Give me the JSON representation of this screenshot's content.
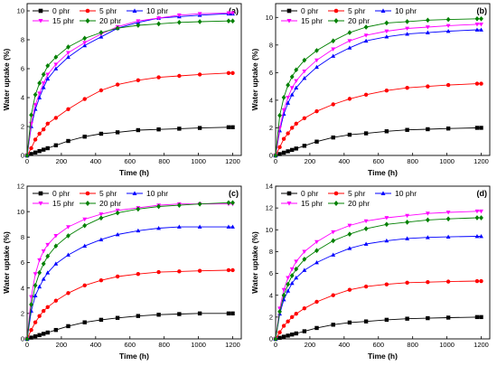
{
  "chart_data": [
    {
      "type": "line",
      "panel_label": "(a)",
      "xlabel": "Time (h)",
      "ylabel": "Water uptake (%)",
      "xlim": [
        0,
        1250
      ],
      "ylim": [
        0,
        10.5
      ],
      "xticks": [
        0,
        200,
        400,
        600,
        800,
        1000,
        1200
      ],
      "yticks": [
        0,
        2,
        4,
        6,
        8,
        10
      ],
      "legend_position": "top-left",
      "series": [
        {
          "name": "0 phr",
          "color": "#000000",
          "marker": "square",
          "x": [
            0,
            24,
            48,
            72,
            96,
            120,
            168,
            240,
            336,
            432,
            528,
            648,
            768,
            888,
            1008,
            1176,
            1200
          ],
          "y": [
            0,
            0.1,
            0.2,
            0.3,
            0.4,
            0.5,
            0.7,
            1.0,
            1.3,
            1.5,
            1.6,
            1.75,
            1.8,
            1.85,
            1.9,
            1.95,
            1.95
          ]
        },
        {
          "name": "5 phr",
          "color": "#ff0000",
          "marker": "circle",
          "x": [
            0,
            24,
            48,
            72,
            96,
            120,
            168,
            240,
            336,
            432,
            528,
            648,
            768,
            888,
            1008,
            1176,
            1200
          ],
          "y": [
            0,
            0.5,
            1.1,
            1.5,
            1.8,
            2.2,
            2.6,
            3.2,
            3.9,
            4.5,
            4.9,
            5.2,
            5.4,
            5.5,
            5.6,
            5.7,
            5.7
          ]
        },
        {
          "name": "10 phr",
          "color": "#0000ff",
          "marker": "triangle-up",
          "x": [
            0,
            24,
            48,
            72,
            96,
            120,
            168,
            240,
            336,
            432,
            528,
            648,
            768,
            888,
            1008,
            1176,
            1200
          ],
          "y": [
            0,
            2.0,
            3.2,
            4.0,
            4.7,
            5.3,
            6.0,
            6.8,
            7.6,
            8.2,
            8.8,
            9.2,
            9.5,
            9.6,
            9.7,
            9.8,
            9.8
          ]
        },
        {
          "name": "15 phr",
          "color": "#ff00ff",
          "marker": "triangle-down",
          "x": [
            0,
            24,
            48,
            72,
            96,
            120,
            168,
            240,
            336,
            432,
            528,
            648,
            768,
            888,
            1008,
            1176,
            1200
          ],
          "y": [
            0,
            2.2,
            3.5,
            4.3,
            5.0,
            5.6,
            6.3,
            7.1,
            7.8,
            8.4,
            8.9,
            9.3,
            9.5,
            9.7,
            9.8,
            9.85,
            9.85
          ]
        },
        {
          "name": "20 phr",
          "color": "#008000",
          "marker": "diamond",
          "x": [
            0,
            24,
            48,
            72,
            96,
            120,
            168,
            240,
            336,
            432,
            528,
            648,
            768,
            888,
            1008,
            1176,
            1200
          ],
          "y": [
            0,
            2.8,
            4.2,
            5.0,
            5.6,
            6.2,
            6.8,
            7.5,
            8.1,
            8.5,
            8.8,
            9.0,
            9.1,
            9.2,
            9.25,
            9.3,
            9.3
          ]
        }
      ]
    },
    {
      "type": "line",
      "panel_label": "(b)",
      "xlabel": "Time (h)",
      "ylabel": "Water uptake (%)",
      "xlim": [
        0,
        1250
      ],
      "ylim": [
        0,
        11
      ],
      "xticks": [
        0,
        200,
        400,
        600,
        800,
        1000,
        1200
      ],
      "yticks": [
        0,
        2,
        4,
        6,
        8,
        10
      ],
      "legend_position": "top-left",
      "series": [
        {
          "name": "0 phr",
          "color": "#000000",
          "marker": "square",
          "x": [
            0,
            24,
            48,
            72,
            96,
            120,
            168,
            240,
            336,
            432,
            528,
            648,
            768,
            888,
            1008,
            1176,
            1200
          ],
          "y": [
            0,
            0.1,
            0.2,
            0.3,
            0.4,
            0.5,
            0.7,
            1.0,
            1.3,
            1.5,
            1.6,
            1.75,
            1.85,
            1.9,
            1.95,
            2.0,
            2.0
          ]
        },
        {
          "name": "5 phr",
          "color": "#ff0000",
          "marker": "circle",
          "x": [
            0,
            24,
            48,
            72,
            96,
            120,
            168,
            240,
            336,
            432,
            528,
            648,
            768,
            888,
            1008,
            1176,
            1200
          ],
          "y": [
            0,
            0.6,
            1.2,
            1.6,
            2.0,
            2.3,
            2.7,
            3.2,
            3.7,
            4.1,
            4.4,
            4.7,
            4.9,
            5.0,
            5.1,
            5.2,
            5.2
          ]
        },
        {
          "name": "10 phr",
          "color": "#0000ff",
          "marker": "triangle-up",
          "x": [
            0,
            24,
            48,
            72,
            96,
            120,
            168,
            240,
            336,
            432,
            528,
            648,
            768,
            888,
            1008,
            1176,
            1200
          ],
          "y": [
            0,
            1.8,
            3.0,
            3.8,
            4.4,
            4.9,
            5.6,
            6.4,
            7.2,
            7.8,
            8.3,
            8.6,
            8.8,
            8.9,
            9.0,
            9.1,
            9.1
          ]
        },
        {
          "name": "15 phr",
          "color": "#ff00ff",
          "marker": "triangle-down",
          "x": [
            0,
            24,
            48,
            72,
            96,
            120,
            168,
            240,
            336,
            432,
            528,
            648,
            768,
            888,
            1008,
            1176,
            1200
          ],
          "y": [
            0,
            2.0,
            3.3,
            4.2,
            4.9,
            5.4,
            6.1,
            6.9,
            7.7,
            8.3,
            8.7,
            9.0,
            9.2,
            9.3,
            9.4,
            9.5,
            9.5
          ]
        },
        {
          "name": "20 phr",
          "color": "#008000",
          "marker": "diamond",
          "x": [
            0,
            24,
            48,
            72,
            96,
            120,
            168,
            240,
            336,
            432,
            528,
            648,
            768,
            888,
            1008,
            1176,
            1200
          ],
          "y": [
            0,
            2.9,
            4.2,
            5.1,
            5.7,
            6.2,
            6.9,
            7.6,
            8.3,
            8.9,
            9.3,
            9.6,
            9.7,
            9.8,
            9.85,
            9.9,
            9.9
          ]
        }
      ]
    },
    {
      "type": "line",
      "panel_label": "(c)",
      "xlabel": "Time (h)",
      "ylabel": "Water uptake (%)",
      "xlim": [
        0,
        1250
      ],
      "ylim": [
        0,
        12
      ],
      "xticks": [
        0,
        200,
        400,
        600,
        800,
        1000,
        1200
      ],
      "yticks": [
        0,
        2,
        4,
        6,
        8,
        10,
        12
      ],
      "legend_position": "top-left",
      "series": [
        {
          "name": "0 phr",
          "color": "#000000",
          "marker": "square",
          "x": [
            0,
            24,
            48,
            72,
            96,
            120,
            168,
            240,
            336,
            432,
            528,
            648,
            768,
            888,
            1008,
            1176,
            1200
          ],
          "y": [
            0,
            0.1,
            0.2,
            0.3,
            0.4,
            0.5,
            0.7,
            1.0,
            1.3,
            1.5,
            1.65,
            1.8,
            1.9,
            1.95,
            2.0,
            2.0,
            2.0
          ]
        },
        {
          "name": "5 phr",
          "color": "#ff0000",
          "marker": "circle",
          "x": [
            0,
            24,
            48,
            72,
            96,
            120,
            168,
            240,
            336,
            432,
            528,
            648,
            768,
            888,
            1008,
            1176,
            1200
          ],
          "y": [
            0,
            0.7,
            1.3,
            1.8,
            2.2,
            2.5,
            3.0,
            3.6,
            4.2,
            4.6,
            4.9,
            5.1,
            5.25,
            5.3,
            5.35,
            5.4,
            5.4
          ]
        },
        {
          "name": "10 phr",
          "color": "#0000ff",
          "marker": "triangle-up",
          "x": [
            0,
            24,
            48,
            72,
            96,
            120,
            168,
            240,
            336,
            432,
            528,
            648,
            768,
            888,
            1008,
            1176,
            1200
          ],
          "y": [
            0,
            2.2,
            3.4,
            4.1,
            4.7,
            5.2,
            5.9,
            6.6,
            7.3,
            7.8,
            8.2,
            8.5,
            8.7,
            8.8,
            8.8,
            8.8,
            8.8
          ]
        },
        {
          "name": "15 phr",
          "color": "#ff00ff",
          "marker": "triangle-down",
          "x": [
            0,
            24,
            48,
            72,
            96,
            120,
            168,
            240,
            336,
            432,
            528,
            648,
            768,
            888,
            1008,
            1176,
            1200
          ],
          "y": [
            0,
            3.3,
            5.1,
            6.2,
            6.9,
            7.4,
            8.1,
            8.8,
            9.4,
            9.8,
            10.1,
            10.3,
            10.5,
            10.6,
            10.6,
            10.6,
            10.6
          ]
        },
        {
          "name": "20 phr",
          "color": "#008000",
          "marker": "diamond",
          "x": [
            0,
            24,
            48,
            72,
            96,
            120,
            168,
            240,
            336,
            432,
            528,
            648,
            768,
            888,
            1008,
            1176,
            1200
          ],
          "y": [
            0,
            2.7,
            4.2,
            5.2,
            5.9,
            6.5,
            7.3,
            8.1,
            8.9,
            9.5,
            9.9,
            10.2,
            10.4,
            10.5,
            10.6,
            10.7,
            10.7
          ]
        }
      ]
    },
    {
      "type": "line",
      "panel_label": "(d)",
      "xlabel": "Time (h)",
      "ylabel": "Water uptake (%)",
      "xlim": [
        0,
        1250
      ],
      "ylim": [
        0,
        14
      ],
      "xticks": [
        0,
        200,
        400,
        600,
        800,
        1000,
        1200
      ],
      "yticks": [
        0,
        2,
        4,
        6,
        8,
        10,
        12,
        14
      ],
      "legend_position": "top-left",
      "series": [
        {
          "name": "0 phr",
          "color": "#000000",
          "marker": "square",
          "x": [
            0,
            24,
            48,
            72,
            96,
            120,
            168,
            240,
            336,
            432,
            528,
            648,
            768,
            888,
            1008,
            1176,
            1200
          ],
          "y": [
            0,
            0.1,
            0.2,
            0.3,
            0.4,
            0.5,
            0.7,
            1.0,
            1.3,
            1.5,
            1.6,
            1.75,
            1.85,
            1.9,
            1.95,
            2.0,
            2.0
          ]
        },
        {
          "name": "5 phr",
          "color": "#ff0000",
          "marker": "circle",
          "x": [
            0,
            24,
            48,
            72,
            96,
            120,
            168,
            240,
            336,
            432,
            528,
            648,
            768,
            888,
            1008,
            1176,
            1200
          ],
          "y": [
            0,
            0.6,
            1.2,
            1.6,
            2.0,
            2.3,
            2.8,
            3.4,
            4.0,
            4.5,
            4.8,
            5.0,
            5.15,
            5.2,
            5.25,
            5.3,
            5.3
          ]
        },
        {
          "name": "10 phr",
          "color": "#0000ff",
          "marker": "triangle-up",
          "x": [
            0,
            24,
            48,
            72,
            96,
            120,
            168,
            240,
            336,
            432,
            528,
            648,
            768,
            888,
            1008,
            1176,
            1200
          ],
          "y": [
            0,
            2.3,
            3.6,
            4.4,
            5.1,
            5.6,
            6.3,
            7.0,
            7.7,
            8.3,
            8.7,
            9.0,
            9.2,
            9.3,
            9.35,
            9.4,
            9.4
          ]
        },
        {
          "name": "15 phr",
          "color": "#ff00ff",
          "marker": "triangle-down",
          "x": [
            0,
            24,
            48,
            72,
            96,
            120,
            168,
            240,
            336,
            432,
            528,
            648,
            768,
            888,
            1008,
            1176,
            1200
          ],
          "y": [
            0,
            2.8,
            4.5,
            5.6,
            6.4,
            7.1,
            8.0,
            8.9,
            9.8,
            10.4,
            10.8,
            11.1,
            11.3,
            11.5,
            11.6,
            11.7,
            11.7
          ]
        },
        {
          "name": "20 phr",
          "color": "#008000",
          "marker": "diamond",
          "x": [
            0,
            24,
            48,
            72,
            96,
            120,
            168,
            240,
            336,
            432,
            528,
            648,
            768,
            888,
            1008,
            1176,
            1200
          ],
          "y": [
            0,
            2.5,
            4.0,
            5.0,
            5.8,
            6.4,
            7.3,
            8.1,
            9.0,
            9.6,
            10.1,
            10.5,
            10.7,
            10.9,
            11.0,
            11.1,
            11.1
          ]
        }
      ]
    }
  ]
}
